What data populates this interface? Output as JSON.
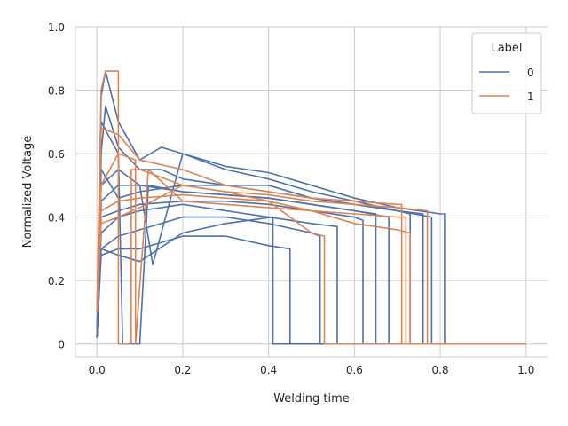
{
  "chart_data": {
    "type": "line",
    "xlabel": "Welding time",
    "ylabel": "Normalized Voltage",
    "xlim": [
      -0.05,
      1.05
    ],
    "ylim": [
      -0.04,
      1.0
    ],
    "xticks": [
      "0.0",
      "0.2",
      "0.4",
      "0.6",
      "0.8",
      "1.0"
    ],
    "yticks": [
      "0",
      "0.2",
      "0.4",
      "0.6",
      "0.8",
      "1.0"
    ],
    "grid": true,
    "legend": {
      "title": "Label",
      "placement": "top-right",
      "entries": [
        "0",
        "1"
      ]
    },
    "colors": {
      "0": "#4c72b0",
      "1": "#dd8452"
    },
    "series": [
      {
        "name": "0",
        "color": "#4c72b0",
        "x": [
          0,
          0.01,
          0.02,
          0.05,
          0.1,
          0.15,
          0.2,
          0.3,
          0.4,
          0.5,
          0.6,
          0.7,
          0.8,
          0.81,
          0.81,
          1.0
        ],
        "y": [
          0.02,
          0.78,
          0.86,
          0.7,
          0.58,
          0.62,
          0.6,
          0.56,
          0.54,
          0.5,
          0.46,
          0.43,
          0.41,
          0.41,
          0,
          0
        ]
      },
      {
        "name": "0",
        "color": "#4c72b0",
        "x": [
          0,
          0.01,
          0.02,
          0.05,
          0.1,
          0.15,
          0.2,
          0.3,
          0.4,
          0.5,
          0.6,
          0.7,
          0.76,
          0.76,
          1.0
        ],
        "y": [
          0.02,
          0.6,
          0.75,
          0.62,
          0.55,
          0.55,
          0.52,
          0.5,
          0.5,
          0.46,
          0.44,
          0.42,
          0.41,
          0,
          0
        ]
      },
      {
        "name": "0",
        "color": "#4c72b0",
        "x": [
          0,
          0.01,
          0.05,
          0.1,
          0.2,
          0.3,
          0.4,
          0.5,
          0.6,
          0.65,
          0.65,
          1.0
        ],
        "y": [
          0.02,
          0.45,
          0.5,
          0.5,
          0.48,
          0.47,
          0.46,
          0.44,
          0.42,
          0.41,
          0,
          0
        ]
      },
      {
        "name": "0",
        "color": "#4c72b0",
        "x": [
          0,
          0.01,
          0.05,
          0.1,
          0.2,
          0.3,
          0.4,
          0.5,
          0.6,
          0.62,
          0.62,
          1.0
        ],
        "y": [
          0.02,
          0.4,
          0.42,
          0.44,
          0.45,
          0.45,
          0.44,
          0.42,
          0.4,
          0.39,
          0,
          0
        ]
      },
      {
        "name": "0",
        "color": "#4c72b0",
        "x": [
          0,
          0.01,
          0.05,
          0.1,
          0.2,
          0.3,
          0.4,
          0.5,
          0.56,
          0.56,
          1.0
        ],
        "y": [
          0.02,
          0.35,
          0.4,
          0.42,
          0.44,
          0.42,
          0.4,
          0.38,
          0.37,
          0,
          0
        ]
      },
      {
        "name": "0",
        "color": "#4c72b0",
        "x": [
          0,
          0.01,
          0.05,
          0.1,
          0.2,
          0.3,
          0.4,
          0.5,
          0.52,
          0.52,
          1.0
        ],
        "y": [
          0.02,
          0.3,
          0.34,
          0.36,
          0.4,
          0.4,
          0.38,
          0.35,
          0.34,
          0,
          0
        ]
      },
      {
        "name": "0",
        "color": "#4c72b0",
        "x": [
          0,
          0.01,
          0.05,
          0.1,
          0.2,
          0.3,
          0.4,
          0.45,
          0.45,
          1.0
        ],
        "y": [
          0.02,
          0.28,
          0.3,
          0.3,
          0.34,
          0.34,
          0.31,
          0.3,
          0,
          0
        ]
      },
      {
        "name": "0",
        "color": "#4c72b0",
        "x": [
          0,
          0.01,
          0.05,
          0.1,
          0.2,
          0.3,
          0.41,
          0.41,
          1.0
        ],
        "y": [
          0.02,
          0.3,
          0.28,
          0.26,
          0.35,
          0.38,
          0.4,
          0,
          0
        ]
      },
      {
        "name": "0",
        "color": "#4c72b0",
        "x": [
          0,
          0.01,
          0.05,
          0.1,
          0.13,
          0.2,
          0.3,
          0.4,
          0.5,
          0.6,
          0.7,
          0.78,
          0.78,
          1.0
        ],
        "y": [
          0.02,
          0.5,
          0.55,
          0.5,
          0.25,
          0.6,
          0.55,
          0.52,
          0.48,
          0.45,
          0.42,
          0.4,
          0,
          0
        ]
      },
      {
        "name": "0",
        "color": "#4c72b0",
        "x": [
          0,
          0.01,
          0.05,
          0.06,
          0.1,
          0.12,
          0.2,
          0.3,
          0.4,
          0.5,
          0.6,
          0.68,
          0.68,
          1.0
        ],
        "y": [
          0.02,
          0.7,
          0.6,
          0,
          0,
          0.5,
          0.48,
          0.47,
          0.46,
          0.44,
          0.42,
          0.4,
          0,
          0
        ]
      },
      {
        "name": "0",
        "color": "#4c72b0",
        "x": [
          0,
          0.01,
          0.05,
          0.1,
          0.2,
          0.3,
          0.4,
          0.5,
          0.6,
          0.7,
          0.73,
          0.73,
          1.0
        ],
        "y": [
          0.02,
          0.55,
          0.46,
          0.48,
          0.5,
          0.5,
          0.48,
          0.46,
          0.44,
          0.42,
          0.41,
          0,
          0
        ]
      },
      {
        "name": "1",
        "color": "#dd8452",
        "x": [
          0,
          0.01,
          0.02,
          0.05,
          0.05,
          0.08,
          0.08,
          0.1,
          0.2,
          0.3,
          0.4,
          0.5,
          0.6,
          0.7,
          0.77,
          0.77,
          1.0
        ],
        "y": [
          0.1,
          0.8,
          0.86,
          0.86,
          0,
          0,
          0.55,
          0.55,
          0.5,
          0.48,
          0.47,
          0.45,
          0.44,
          0.43,
          0.42,
          0,
          0
        ]
      },
      {
        "name": "1",
        "color": "#dd8452",
        "x": [
          0,
          0.01,
          0.05,
          0.1,
          0.2,
          0.3,
          0.4,
          0.5,
          0.6,
          0.7,
          0.71,
          0.71,
          1.0
        ],
        "y": [
          0.1,
          0.68,
          0.66,
          0.58,
          0.55,
          0.5,
          0.48,
          0.46,
          0.45,
          0.44,
          0.44,
          0,
          0
        ]
      },
      {
        "name": "1",
        "color": "#dd8452",
        "x": [
          0,
          0.01,
          0.05,
          0.1,
          0.2,
          0.3,
          0.4,
          0.45,
          0.5,
          0.53,
          0.53,
          1.0
        ],
        "y": [
          0.1,
          0.42,
          0.45,
          0.46,
          0.47,
          0.46,
          0.45,
          0.4,
          0.35,
          0.34,
          0,
          0
        ]
      },
      {
        "name": "1",
        "color": "#dd8452",
        "x": [
          0,
          0.01,
          0.05,
          0.1,
          0.2,
          0.3,
          0.4,
          0.5,
          0.6,
          0.7,
          0.73,
          0.73,
          1.0
        ],
        "y": [
          0.1,
          0.38,
          0.4,
          0.43,
          0.5,
          0.48,
          0.45,
          0.42,
          0.38,
          0.36,
          0.35,
          0,
          0
        ]
      },
      {
        "name": "1",
        "color": "#dd8452",
        "x": [
          0,
          0.01,
          0.05,
          0.09,
          0.09,
          0.12,
          0.2,
          0.3,
          0.4,
          0.5,
          0.6,
          0.7,
          0.72,
          0.72,
          1.0
        ],
        "y": [
          0.1,
          0.5,
          0.6,
          0.58,
          0,
          0.55,
          0.45,
          0.44,
          0.43,
          0.42,
          0.41,
          0.4,
          0.4,
          0,
          0
        ]
      }
    ]
  }
}
